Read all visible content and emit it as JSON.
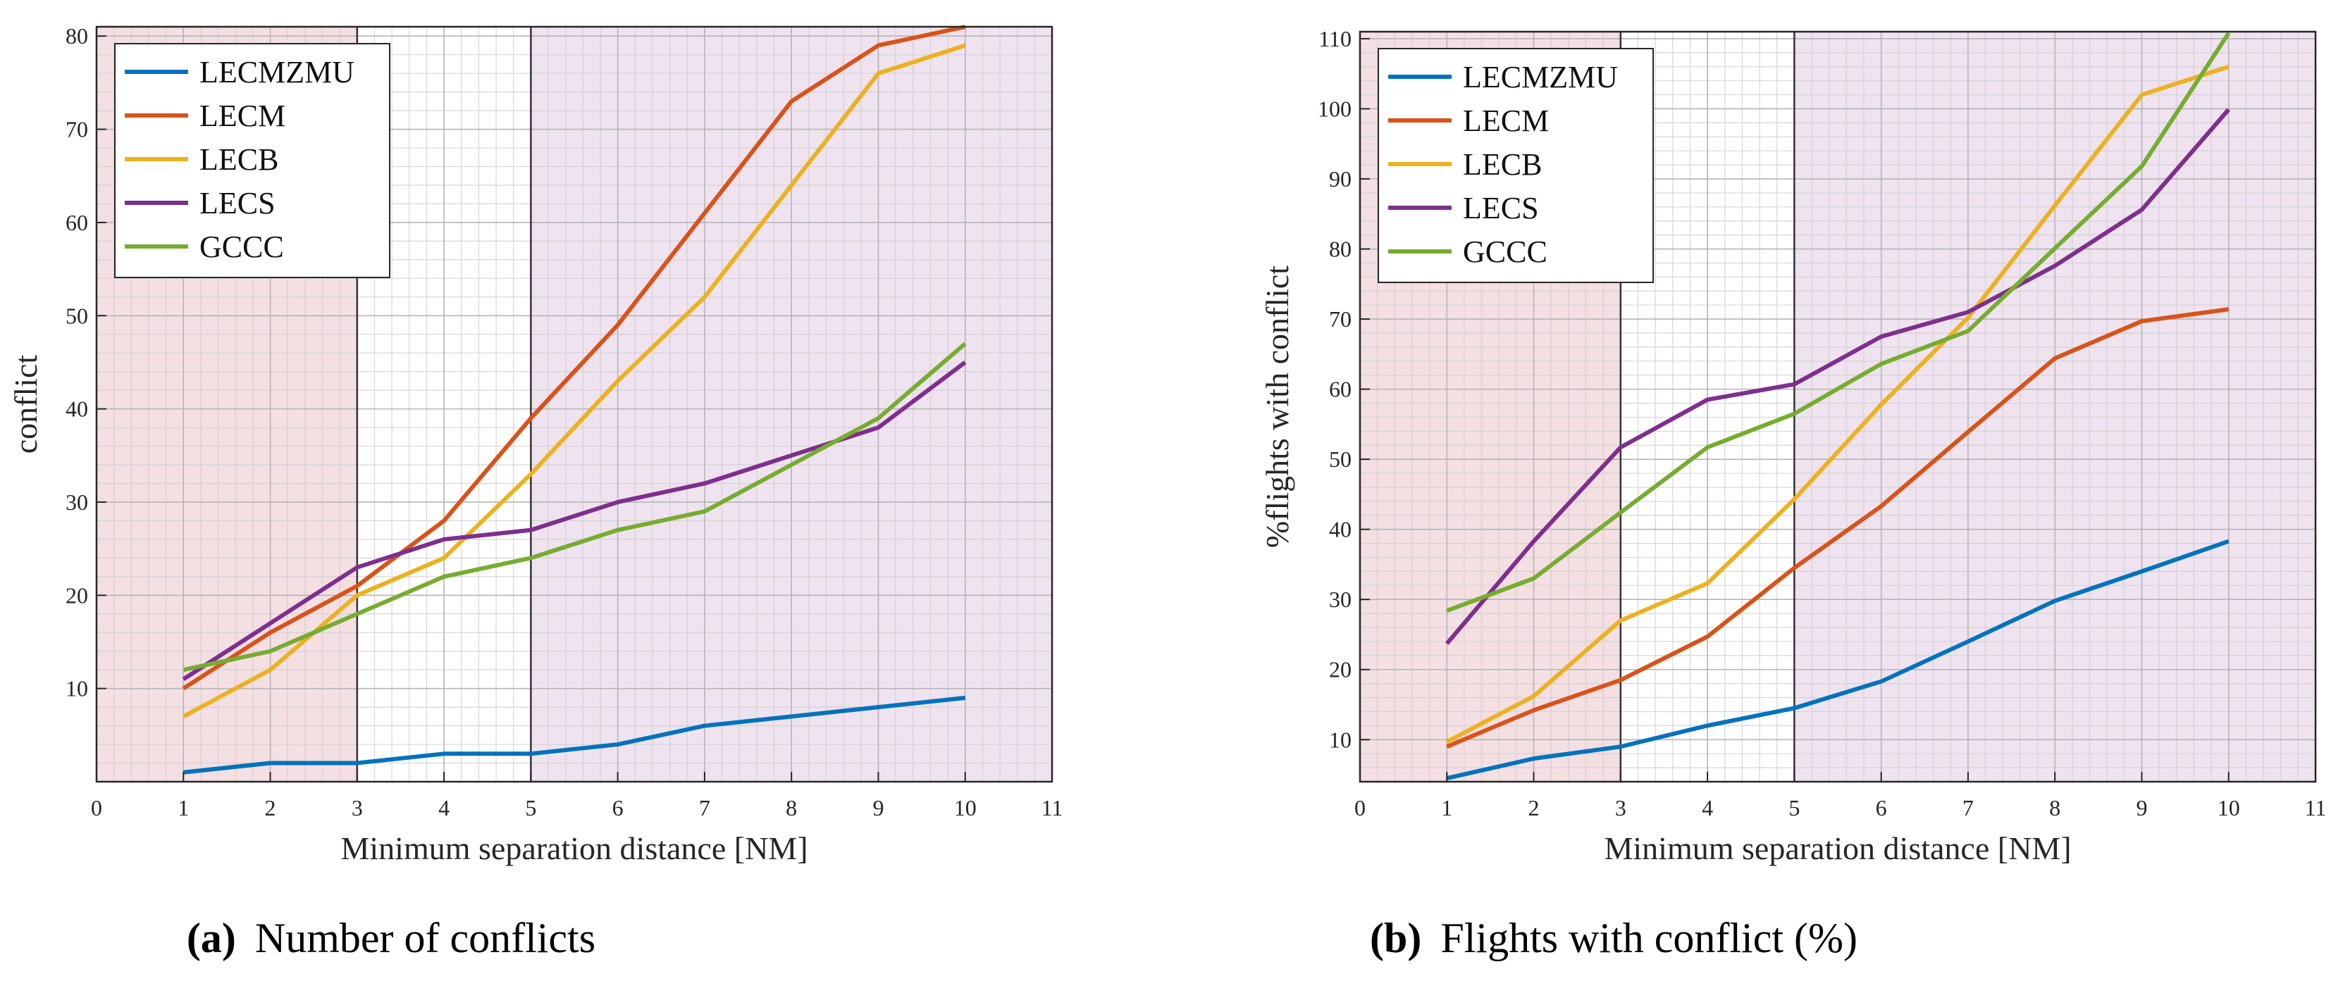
{
  "colors": {
    "LECMZMU": "#0072BD",
    "LECM": "#D95319",
    "LECB": "#EDB120",
    "LECS": "#7E2F8E",
    "GCCC": "#77AC30",
    "zone_low": "#f4dfe3",
    "zone_high": "#efe3ef",
    "grid": "#cfcfcf",
    "axis": "#262626"
  },
  "captions": [
    {
      "letter": "(a)",
      "text": "Number of conflicts"
    },
    {
      "letter": "(b)",
      "text": "Flights with conflict (%)"
    }
  ],
  "chart_data": [
    {
      "type": "line",
      "title": "",
      "xlabel": "Minimum separation distance [NM]",
      "ylabel": "conflict",
      "xlim": [
        0,
        11
      ],
      "ylim": [
        0,
        81
      ],
      "xticks": [
        "0",
        "1",
        "2",
        "3",
        "4",
        "5",
        "6",
        "7",
        "8",
        "9",
        "10",
        "11"
      ],
      "yticks": [
        "10",
        "20",
        "30",
        "40",
        "50",
        "60",
        "70",
        "80"
      ],
      "ytick_values": [
        10,
        20,
        30,
        40,
        50,
        60,
        70,
        80
      ],
      "grid": true,
      "legend_position": "top-left",
      "shaded_zones": [
        {
          "from": 0,
          "to": 3,
          "color_key": "zone_low"
        },
        {
          "from": 5,
          "to": 11,
          "color_key": "zone_high"
        }
      ],
      "vlines": [
        3,
        5
      ],
      "x": [
        1,
        2,
        3,
        4,
        5,
        6,
        7,
        8,
        9,
        10
      ],
      "series": [
        {
          "name": "LECMZMU",
          "values": [
            1,
            2,
            2,
            3,
            3,
            4,
            6,
            7,
            8,
            9
          ]
        },
        {
          "name": "LECM",
          "values": [
            10,
            16,
            21,
            28,
            39,
            49,
            61,
            73,
            79,
            81
          ]
        },
        {
          "name": "LECB",
          "values": [
            7,
            12,
            20,
            24,
            33,
            43,
            52,
            64,
            76,
            79
          ]
        },
        {
          "name": "LECS",
          "values": [
            11,
            17,
            23,
            26,
            27,
            30,
            32,
            35,
            38,
            45
          ]
        },
        {
          "name": "GCCC",
          "values": [
            12,
            14,
            18,
            22,
            24,
            27,
            29,
            34,
            39,
            47
          ]
        }
      ]
    },
    {
      "type": "line",
      "title": "",
      "xlabel": "Minimum separation distance [NM]",
      "ylabel": "%flights with conflict",
      "xlim": [
        0,
        11
      ],
      "ylim": [
        4,
        111
      ],
      "xticks": [
        "0",
        "1",
        "2",
        "3",
        "4",
        "5",
        "6",
        "7",
        "8",
        "9",
        "10",
        "11"
      ],
      "yticks": [
        "10",
        "20",
        "30",
        "40",
        "50",
        "60",
        "70",
        "80",
        "90",
        "100",
        "110"
      ],
      "ytick_values": [
        10,
        20,
        30,
        40,
        50,
        60,
        70,
        80,
        90,
        100,
        110
      ],
      "grid": true,
      "legend_position": "top-left",
      "shaded_zones": [
        {
          "from": 0,
          "to": 3,
          "color_key": "zone_low"
        },
        {
          "from": 5,
          "to": 11,
          "color_key": "zone_high"
        }
      ],
      "vlines": [
        3,
        5
      ],
      "x": [
        1,
        2,
        3,
        4,
        5,
        6,
        7,
        8,
        9,
        10
      ],
      "series": [
        {
          "name": "LECMZMU",
          "values": [
            4.5,
            7.3,
            9,
            12,
            14.5,
            18.3,
            24,
            29.8,
            34,
            38.3
          ]
        },
        {
          "name": "LECM",
          "values": [
            9,
            14.2,
            18.5,
            24.7,
            34.5,
            43.3,
            53.9,
            64.4,
            69.7,
            71.4
          ]
        },
        {
          "name": "LECB",
          "values": [
            9.7,
            16.2,
            27,
            32.3,
            44.3,
            57.8,
            70.2,
            86.2,
            102,
            106
          ]
        },
        {
          "name": "LECS",
          "values": [
            23.7,
            38.3,
            51.7,
            58.5,
            60.7,
            67.5,
            71,
            77.6,
            85.6,
            99.9
          ]
        },
        {
          "name": "GCCC",
          "values": [
            28.4,
            33,
            42.4,
            51.7,
            56.5,
            63.6,
            68.3,
            80.1,
            91.8,
            110.8
          ]
        }
      ]
    }
  ]
}
